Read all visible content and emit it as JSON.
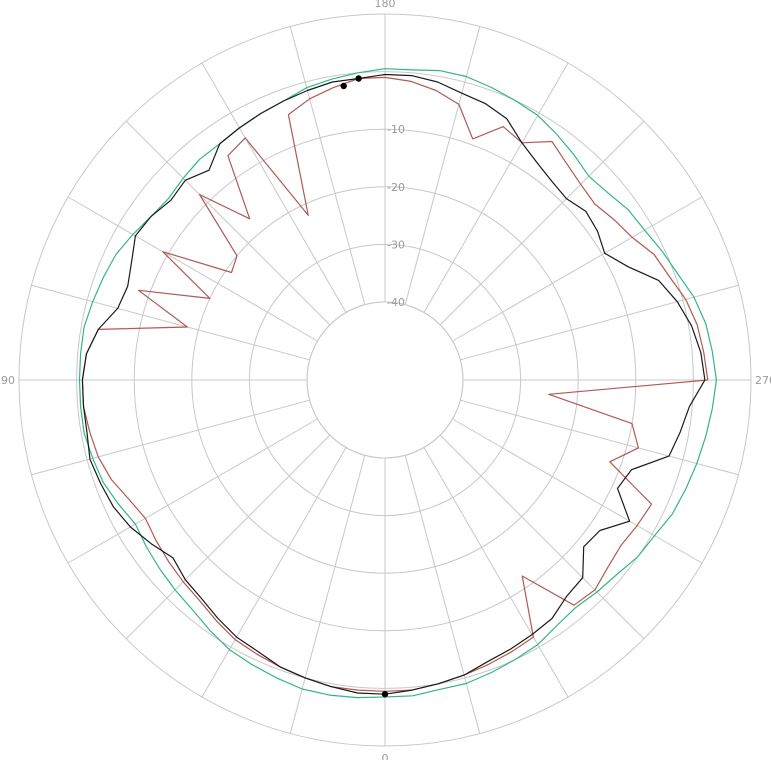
{
  "chart_data": {
    "type": "polar-line",
    "title": "",
    "angular_ticks": [
      {
        "deg": 0,
        "label": "0"
      },
      {
        "deg": 90,
        "label": "90"
      },
      {
        "deg": 180,
        "label": "180"
      },
      {
        "deg": 270,
        "label": "270"
      }
    ],
    "radial_range": [
      -40,
      10
    ],
    "radial_rings": [
      -40,
      -30,
      -20,
      -10,
      0,
      10
    ],
    "radial_labels": [
      {
        "value": -40,
        "label": "-40"
      },
      {
        "value": -30,
        "label": "-30"
      },
      {
        "value": -20,
        "label": "-20"
      },
      {
        "value": -10,
        "label": "-10"
      }
    ],
    "spoke_step_deg": 15,
    "grid": true,
    "series": [
      {
        "color": "#35b585",
        "values": [
          [
            0,
            1.5
          ],
          [
            5,
            1.8
          ],
          [
            10,
            2.0
          ],
          [
            15,
            2.0
          ],
          [
            20,
            1.5
          ],
          [
            25,
            1.0
          ],
          [
            30,
            0.5
          ],
          [
            35,
            -0.5
          ],
          [
            40,
            -1.5
          ],
          [
            45,
            -2.0
          ],
          [
            50,
            -2.5
          ],
          [
            55,
            -3.0
          ],
          [
            60,
            -3.5
          ],
          [
            65,
            -2.5
          ],
          [
            70,
            -1.5
          ],
          [
            75,
            -1.0
          ],
          [
            80,
            -0.5
          ],
          [
            85,
            -0.5
          ],
          [
            90,
            -0.5
          ],
          [
            95,
            -0.5
          ],
          [
            100,
            -0.5
          ],
          [
            105,
            -1.0
          ],
          [
            110,
            -1.5
          ],
          [
            115,
            -2.0
          ],
          [
            120,
            -3.0
          ],
          [
            125,
            -4.0
          ],
          [
            130,
            -4.5
          ],
          [
            135,
            -4.0
          ],
          [
            140,
            -3.5
          ],
          [
            145,
            -3.5
          ],
          [
            150,
            -3.0
          ],
          [
            155,
            -2.5
          ],
          [
            160,
            -2.0
          ],
          [
            165,
            -1.0
          ],
          [
            170,
            -0.5
          ],
          [
            175,
            0.0
          ],
          [
            180,
            0.5
          ],
          [
            185,
            0.5
          ],
          [
            190,
            1.0
          ],
          [
            195,
            1.0
          ],
          [
            200,
            0.5
          ],
          [
            205,
            0.0
          ],
          [
            210,
            -0.5
          ],
          [
            215,
            -1.5
          ],
          [
            220,
            -2.5
          ],
          [
            225,
            -3.5
          ],
          [
            230,
            -3.0
          ],
          [
            235,
            -2.0
          ],
          [
            240,
            -1.5
          ],
          [
            245,
            -0.5
          ],
          [
            250,
            0.5
          ],
          [
            255,
            2.0
          ],
          [
            260,
            3.0
          ],
          [
            265,
            3.5
          ],
          [
            270,
            4.0
          ],
          [
            275,
            3.5
          ],
          [
            280,
            3.0
          ],
          [
            285,
            2.5
          ],
          [
            290,
            2.0
          ],
          [
            295,
            1.5
          ],
          [
            300,
            0.5
          ],
          [
            305,
            0.0
          ],
          [
            310,
            -1.0
          ],
          [
            315,
            -1.5
          ],
          [
            320,
            -2.0
          ],
          [
            325,
            -1.5
          ],
          [
            330,
            -0.5
          ],
          [
            335,
            0.0
          ],
          [
            340,
            0.5
          ],
          [
            345,
            1.0
          ],
          [
            350,
            1.0
          ],
          [
            355,
            1.5
          ]
        ]
      },
      {
        "color": "#b05a55",
        "values": [
          [
            0,
            0.5
          ],
          [
            5,
            0.5
          ],
          [
            10,
            0.5
          ],
          [
            15,
            0.0
          ],
          [
            20,
            -0.5
          ],
          [
            25,
            -1.0
          ],
          [
            30,
            -1.5
          ],
          [
            35,
            -2.5
          ],
          [
            40,
            -3.5
          ],
          [
            45,
            -4.0
          ],
          [
            50,
            -4.5
          ],
          [
            55,
            -5.0
          ],
          [
            60,
            -5.5
          ],
          [
            65,
            -4.5
          ],
          [
            70,
            -3.0
          ],
          [
            75,
            -2.0
          ],
          [
            80,
            -1.5
          ],
          [
            85,
            -1.0
          ],
          [
            90,
            -1.0
          ],
          [
            95,
            -1.5
          ],
          [
            100,
            -3.0
          ],
          [
            105,
            -18.0
          ],
          [
            110,
            -8.0
          ],
          [
            115,
            -20.0
          ],
          [
            120,
            -9.0
          ],
          [
            125,
            -21.0
          ],
          [
            130,
            -20.0
          ],
          [
            135,
            -8.0
          ],
          [
            140,
            -17.0
          ],
          [
            145,
            -6.0
          ],
          [
            150,
            -5.0
          ],
          [
            155,
            -22.0
          ],
          [
            160,
            -4.5
          ],
          [
            165,
            -3.0
          ],
          [
            170,
            -2.0
          ],
          [
            175,
            -1.0
          ],
          [
            180,
            -1.0
          ],
          [
            185,
            -1.5
          ],
          [
            190,
            -2.5
          ],
          [
            195,
            -4.0
          ],
          [
            200,
            -9.0
          ],
          [
            205,
            -5.0
          ],
          [
            210,
            -6.0
          ],
          [
            215,
            -3.0
          ],
          [
            220,
            -4.5
          ],
          [
            225,
            -5.5
          ],
          [
            230,
            -6.0
          ],
          [
            235,
            -5.0
          ],
          [
            240,
            -4.0
          ],
          [
            245,
            -2.0
          ],
          [
            250,
            -1.0
          ],
          [
            255,
            0.5
          ],
          [
            260,
            1.5
          ],
          [
            265,
            2.0
          ],
          [
            270,
            2.5
          ],
          [
            275,
            -25.0
          ],
          [
            280,
            -10.0
          ],
          [
            285,
            -8.0
          ],
          [
            290,
            -12.0
          ],
          [
            295,
            -2.5
          ],
          [
            300,
            -3.0
          ],
          [
            305,
            -3.5
          ],
          [
            310,
            -3.0
          ],
          [
            315,
            -2.0
          ],
          [
            320,
            -2.5
          ],
          [
            325,
            -12.0
          ],
          [
            330,
            -2.0
          ],
          [
            335,
            -1.5
          ],
          [
            340,
            -1.0
          ],
          [
            345,
            -0.5
          ],
          [
            350,
            0.0
          ],
          [
            355,
            0.5
          ]
        ]
      },
      {
        "color": "#1a1a1a",
        "values": [
          [
            0,
            1.0
          ],
          [
            5,
            1.0
          ],
          [
            10,
            0.5
          ],
          [
            15,
            0.0
          ],
          [
            20,
            -0.5
          ],
          [
            25,
            -1.5
          ],
          [
            30,
            -2.0
          ],
          [
            35,
            -3.0
          ],
          [
            40,
            -4.0
          ],
          [
            45,
            -4.5
          ],
          [
            50,
            -5.5
          ],
          [
            55,
            -4.0
          ],
          [
            60,
            -2.5
          ],
          [
            65,
            -1.5
          ],
          [
            70,
            -1.0
          ],
          [
            75,
            -0.5
          ],
          [
            80,
            -1.0
          ],
          [
            85,
            -1.0
          ],
          [
            90,
            -1.0
          ],
          [
            95,
            -1.5
          ],
          [
            100,
            -3.0
          ],
          [
            105,
            -5.5
          ],
          [
            110,
            -6.0
          ],
          [
            115,
            -5.0
          ],
          [
            120,
            -3.5
          ],
          [
            125,
            -4.0
          ],
          [
            130,
            -5.0
          ],
          [
            135,
            -4.5
          ],
          [
            140,
            -6.0
          ],
          [
            145,
            -3.5
          ],
          [
            150,
            -3.0
          ],
          [
            155,
            -2.5
          ],
          [
            160,
            -2.0
          ],
          [
            165,
            -1.5
          ],
          [
            170,
            -1.0
          ],
          [
            175,
            -1.0
          ],
          [
            180,
            -0.5
          ],
          [
            185,
            -0.5
          ],
          [
            190,
            -1.0
          ],
          [
            195,
            -2.0
          ],
          [
            200,
            -2.5
          ],
          [
            205,
            -3.5
          ],
          [
            210,
            -6.0
          ],
          [
            215,
            -7.5
          ],
          [
            220,
            -8.5
          ],
          [
            225,
            -9.0
          ],
          [
            230,
            -8.0
          ],
          [
            235,
            -8.5
          ],
          [
            240,
            -9.5
          ],
          [
            245,
            -7.0
          ],
          [
            250,
            -3.0
          ],
          [
            255,
            -1.0
          ],
          [
            260,
            0.5
          ],
          [
            265,
            1.5
          ],
          [
            270,
            2.0
          ],
          [
            275,
            -0.5
          ],
          [
            280,
            -1.5
          ],
          [
            285,
            -2.5
          ],
          [
            290,
            -8.0
          ],
          [
            295,
            -9.0
          ],
          [
            300,
            -4.5
          ],
          [
            305,
            -8.0
          ],
          [
            310,
            -8.5
          ],
          [
            315,
            -5.0
          ],
          [
            320,
            -4.5
          ],
          [
            325,
            -3.0
          ],
          [
            330,
            -2.5
          ],
          [
            335,
            -2.0
          ],
          [
            340,
            -1.5
          ],
          [
            345,
            -0.5
          ],
          [
            350,
            0.0
          ],
          [
            355,
            0.5
          ]
        ]
      }
    ],
    "markers": [
      {
        "series_index": 2,
        "deg": 0,
        "value": 1.0
      },
      {
        "series_index": 2,
        "deg": 175,
        "value": -1.0
      },
      {
        "series_index": 1,
        "deg": 172,
        "value": -2.0
      }
    ]
  }
}
